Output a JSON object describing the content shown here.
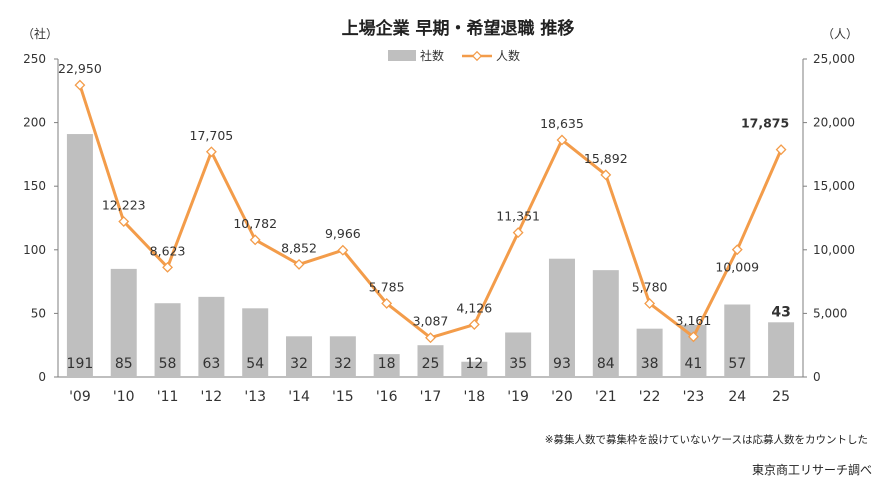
{
  "chart_data": {
    "type": "bar",
    "title": "上場企業 早期・希望退職 推移",
    "categories": [
      "'09",
      "'10",
      "'11",
      "'12",
      "'13",
      "'14",
      "'15",
      "'16",
      "'17",
      "'18",
      "'19",
      "'20",
      "'21",
      "'22",
      "'23",
      "24",
      "25"
    ],
    "series": [
      {
        "name": "社数",
        "type": "bar",
        "axis": "left",
        "color": "#bfbfbf",
        "values": [
          191,
          85,
          58,
          63,
          54,
          32,
          32,
          18,
          25,
          12,
          35,
          93,
          84,
          38,
          41,
          57,
          43
        ]
      },
      {
        "name": "人数",
        "type": "line",
        "axis": "right",
        "color": "#f39c4a",
        "values": [
          22950,
          12223,
          8623,
          17705,
          10782,
          8852,
          9966,
          5785,
          3087,
          4126,
          11351,
          18635,
          15892,
          5780,
          3161,
          10009,
          17875
        ]
      }
    ],
    "left_axis": {
      "unit": "（社）",
      "ylim": [
        0,
        250
      ],
      "ticks": [
        0,
        50,
        100,
        150,
        200,
        250
      ]
    },
    "right_axis": {
      "unit": "（人）",
      "ylim": [
        0,
        25000
      ],
      "ticks": [
        "0",
        "5,000",
        "10,000",
        "15,000",
        "20,000",
        "25,000"
      ]
    },
    "bar_labels": [
      "191",
      "85",
      "58",
      "63",
      "54",
      "32",
      "32",
      "18",
      "25",
      "12",
      "35",
      "93",
      "84",
      "38",
      "41",
      "57",
      "43"
    ],
    "point_labels": [
      "22,950",
      "12,223",
      "8,623",
      "17,705",
      "10,782",
      "8,852",
      "9,966",
      "5,785",
      "3,087",
      "4,126",
      "11,351",
      "18,635",
      "15,892",
      "5,780",
      "3,161",
      "10,009",
      "17,875"
    ],
    "highlight_color": "#cc1f1f",
    "legend": {
      "position": "top-center",
      "items": [
        "社数",
        "人数"
      ]
    },
    "grid": false,
    "note": "※募集人数で募集枠を設けていないケースは応募人数をカウントした",
    "source": "東京商工リサーチ調べ"
  }
}
